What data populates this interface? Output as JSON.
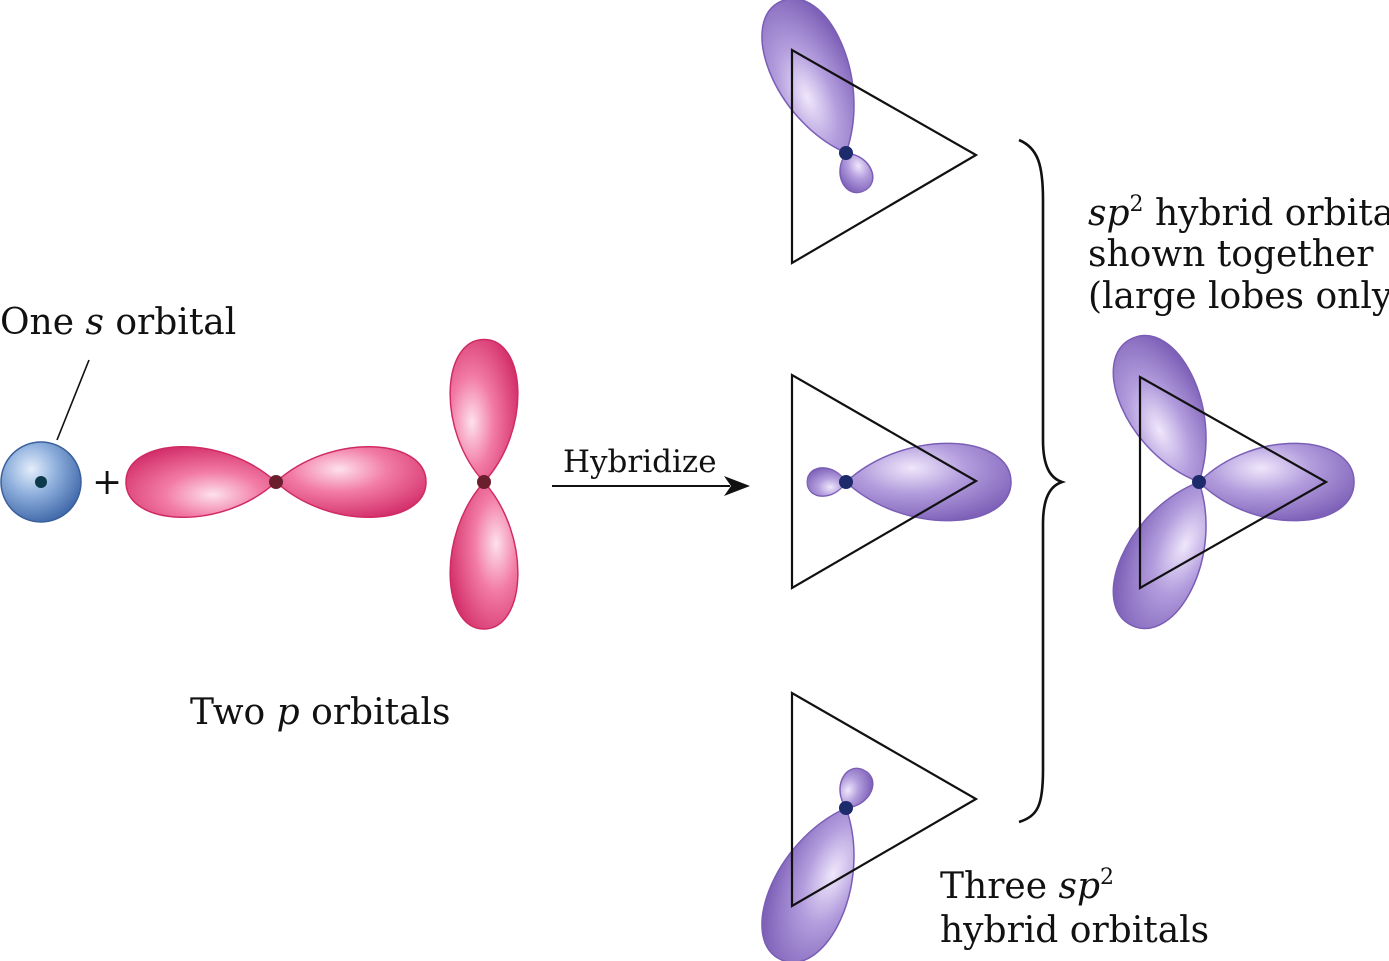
{
  "labels": {
    "s_orbital": {
      "pre": "One ",
      "italic": "s",
      "post": " orbital"
    },
    "plus": "+",
    "p_orbitals": {
      "pre": "Two ",
      "italic": "p",
      "post": " orbitals"
    },
    "arrow": "Hybridize",
    "hybrids": {
      "line1_pre": "Three ",
      "italic": "sp",
      "sup": "2",
      "line2": "hybrid orbitals"
    },
    "together": {
      "italic": "sp",
      "sup": "2",
      "line1_post": " hybrid orbitals",
      "line2": "shown together",
      "line3": "(large lobes only)"
    }
  },
  "colors": {
    "s_orbital": "#5e86c4",
    "p_orbital": "#ec5c8c",
    "hybrid": "#9478c6",
    "nucleus_s": "#0d3a4a",
    "nucleus_p": "#6b1f2e",
    "nucleus_h": "#1d2a6b"
  }
}
